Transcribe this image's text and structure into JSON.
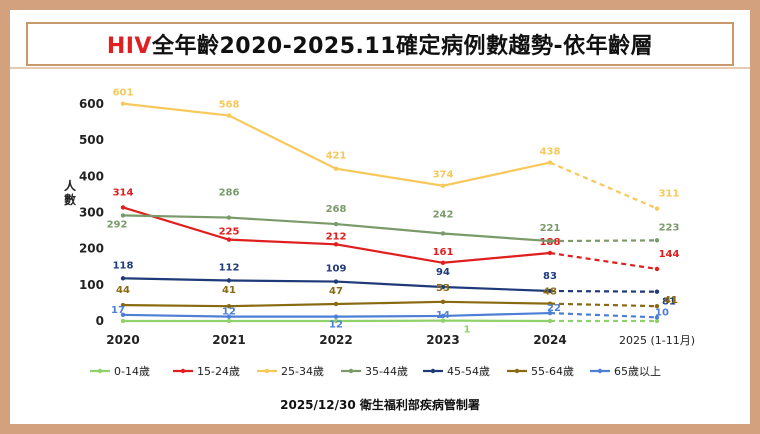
{
  "page": {
    "title_highlight": "HIV",
    "title_rest": "全年齡2020-2025.11確定病例數趨勢-依年齡層",
    "footer": "2025/12/30 衛生福利部疾病管制署"
  },
  "chart_data": {
    "type": "line",
    "title": "HIV全年齡2020-2025.11確定病例數趨勢-依年齡層",
    "ylabel": "人數",
    "xlabel": "",
    "categories": [
      "2020",
      "2021",
      "2022",
      "2023",
      "2024",
      "2025 (1-11月)"
    ],
    "ylim": [
      0,
      600
    ],
    "yticks": [
      0,
      100,
      200,
      300,
      400,
      500,
      600
    ],
    "grid": false,
    "legend_position": "bottom",
    "dashed_from_index": 4,
    "series": [
      {
        "name": "0-14歲",
        "color": "#8fd16a",
        "values": [
          0,
          0,
          0,
          1,
          0,
          0
        ],
        "labels": [
          "",
          "",
          "",
          "1",
          "",
          ""
        ]
      },
      {
        "name": "15-24歲",
        "color": "#e01e1e",
        "values": [
          314,
          225,
          212,
          161,
          188,
          144
        ],
        "labels": [
          "314",
          "225",
          "212",
          "161",
          "188",
          "144"
        ]
      },
      {
        "name": "25-34歲",
        "color": "#f7c85a",
        "values": [
          601,
          568,
          421,
          374,
          438,
          311
        ],
        "labels": [
          "601",
          "568",
          "421",
          "374",
          "438",
          "311"
        ]
      },
      {
        "name": "35-44歲",
        "color": "#7a9a6a",
        "values": [
          292,
          286,
          268,
          242,
          221,
          223
        ],
        "labels": [
          "292",
          "286",
          "268",
          "242",
          "221",
          "223"
        ]
      },
      {
        "name": "45-54歲",
        "color": "#1f3a78",
        "values": [
          118,
          112,
          109,
          94,
          83,
          81
        ],
        "labels": [
          "118",
          "112",
          "109",
          "94",
          "83",
          "81"
        ]
      },
      {
        "name": "55-64歲",
        "color": "#8a6a10",
        "values": [
          44,
          41,
          47,
          53,
          48,
          41
        ],
        "labels": [
          "44",
          "41",
          "47",
          "53",
          "48",
          "41"
        ]
      },
      {
        "name": "65歲以上",
        "color": "#4d7fd6",
        "values": [
          17,
          12,
          12,
          14,
          22,
          10
        ],
        "labels": [
          "17",
          "12",
          "12",
          "14",
          "22",
          "10"
        ]
      }
    ]
  }
}
